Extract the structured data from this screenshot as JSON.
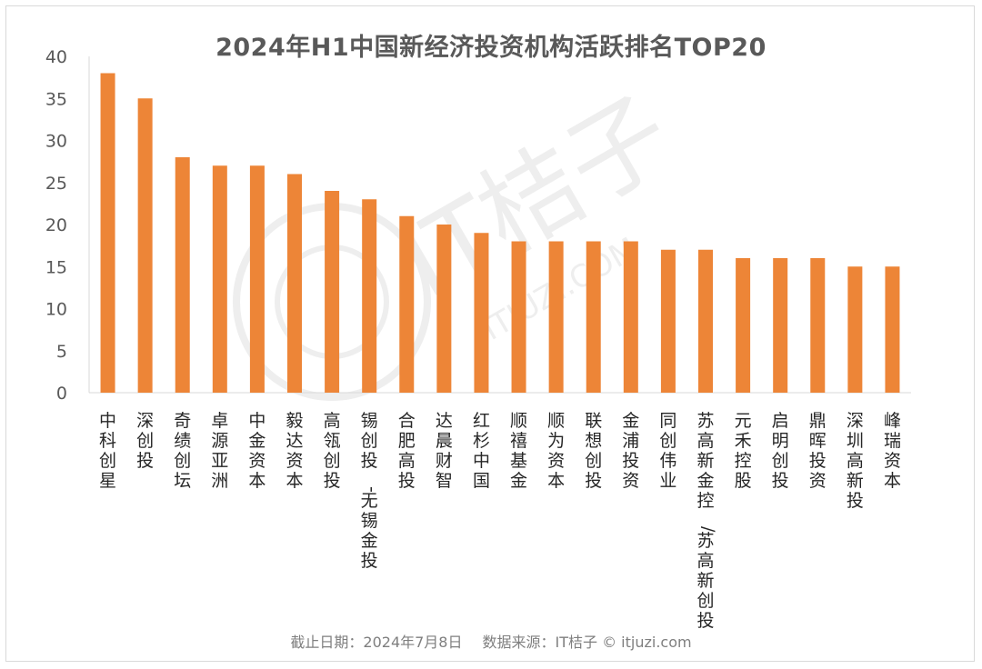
{
  "chart_data": {
    "type": "bar",
    "title": "2024年H1中国新经济投资机构活跃排名TOP20",
    "xlabel": "",
    "ylabel": "",
    "ylim": [
      0,
      40
    ],
    "yticks": [
      0,
      5,
      10,
      15,
      20,
      25,
      30,
      35,
      40
    ],
    "grid": false,
    "bar_color": "#ed8537",
    "categories": [
      "中科创星",
      "深创投",
      "奇绩创坛",
      "卓源亚洲",
      "中金资本",
      "毅达资本",
      "高瓴创投",
      "锡创投-无锡金投",
      "合肥高投",
      "达晨财智",
      "红杉中国",
      "顺禧基金",
      "顺为资本",
      "联想创投",
      "金浦投资",
      "同创伟业",
      "苏高新金控/苏高新创投",
      "元禾控股",
      "启明创投",
      "鼎晖投资",
      "深圳高新投",
      "峰瑞资本"
    ],
    "values": [
      38,
      35,
      28,
      27,
      27,
      26,
      24,
      23,
      21,
      20,
      19,
      18,
      18,
      18,
      18,
      17,
      17,
      16,
      16,
      16,
      15,
      15
    ]
  },
  "footer": {
    "date_text": "截止日期：2024年7月8日",
    "source_text": "数据来源：IT桔子 © itjuzi.com"
  },
  "watermark": {
    "text": "IT桔子",
    "sub": "ITJUZI.COM"
  }
}
